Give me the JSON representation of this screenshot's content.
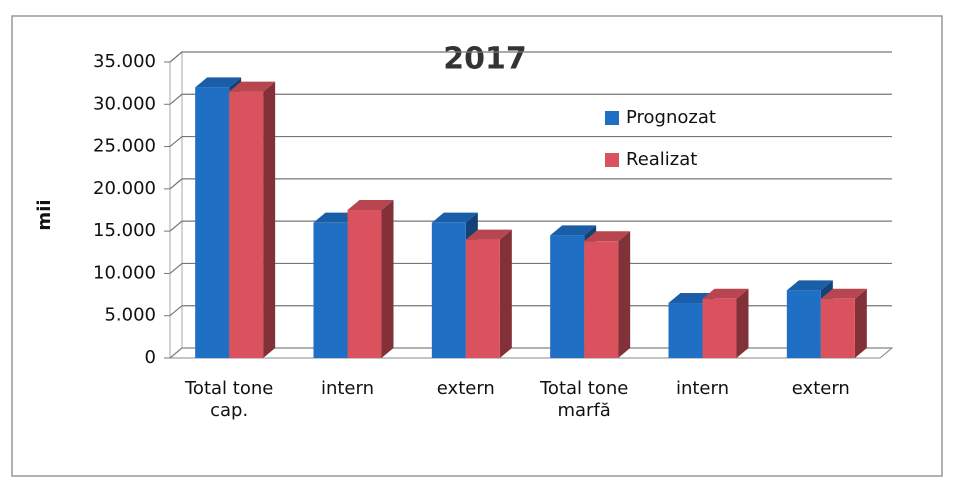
{
  "chart_data": {
    "type": "bar3d",
    "title": "2017",
    "ylabel": "mii",
    "categories": [
      "Total tone cap.",
      "intern",
      "extern",
      "Total tone marfă",
      "intern",
      "extern"
    ],
    "series": [
      {
        "name": "Prognozat",
        "color": "#1f6fc5",
        "values": [
          32000,
          16000,
          16000,
          14500,
          6500,
          8000
        ]
      },
      {
        "name": "Realizat",
        "color": "#d9525e",
        "values": [
          31500,
          17500,
          14000,
          13800,
          7000,
          7000
        ]
      }
    ],
    "ylim": [
      0,
      35000
    ],
    "yticks": [
      0,
      {
        "value": 5000,
        "label": "5.000"
      },
      {
        "value": 10000,
        "label": "10.000"
      },
      {
        "value": 15000,
        "label": "15.000"
      },
      {
        "value": 20000,
        "label": "20.000"
      },
      {
        "value": 25000,
        "label": "25.000"
      },
      {
        "value": 30000,
        "label": "30.000"
      },
      {
        "value": 35000,
        "label": "35.000"
      }
    ],
    "grid": true,
    "legend": "upper right"
  }
}
